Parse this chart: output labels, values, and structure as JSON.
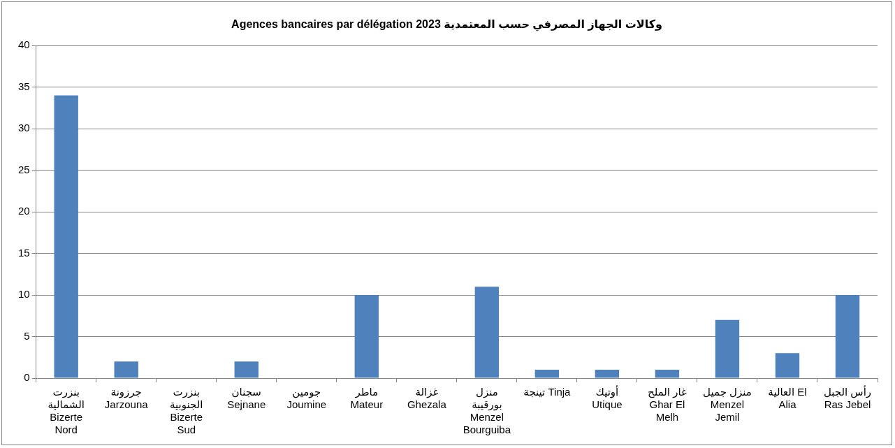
{
  "chart_data": {
    "type": "bar",
    "title": "Agences bancaires par délégation 2023 وكالات الجهاز المصرفي حسب المعتمدية",
    "categories": [
      "بنزرت الشمالية Bizerte Nord",
      "جرزونة Jarzouna",
      "بنزرت الجنوبية Bizerte Sud",
      "سجنان Sejnane",
      "جومين Joumine",
      "ماطر Mateur",
      "غزالة Ghezala",
      "منزل بورقيبة Menzel Bourguiba",
      "تينجة Tinja",
      "أوتيك Utique",
      "غار الملح Ghar El Melh",
      "منزل جميل Menzel Jemil",
      "العالية El Alia",
      "رأس الجبل Ras Jebel"
    ],
    "values": [
      34,
      2,
      0,
      2,
      0,
      10,
      0,
      11,
      1,
      1,
      1,
      7,
      3,
      10
    ],
    "color": "#4f81bd",
    "ylim": [
      0,
      40
    ],
    "yticks": [
      0,
      5,
      10,
      15,
      20,
      25,
      30,
      35,
      40
    ],
    "grid": "y",
    "legend": false
  }
}
